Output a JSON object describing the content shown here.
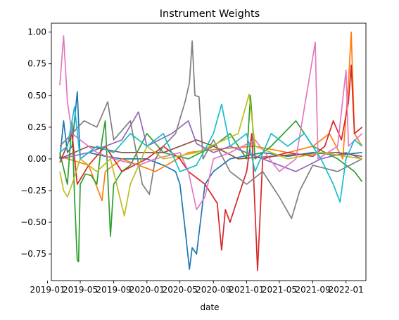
{
  "chart_data": {
    "type": "line",
    "title": "Instrument Weights",
    "xlabel": "date",
    "ylabel": "",
    "x_range": [
      "2019-01-15",
      "2022-03-15"
    ],
    "ylim": [
      -0.96,
      1.07
    ],
    "grid": false,
    "legend": "none",
    "x_ticks": [
      {
        "date": "2019-01-01",
        "label": "2019-01"
      },
      {
        "date": "2019-05-01",
        "label": "2019-05"
      },
      {
        "date": "2019-09-01",
        "label": "2019-09"
      },
      {
        "date": "2020-01-01",
        "label": "2020-01"
      },
      {
        "date": "2020-05-01",
        "label": "2020-05"
      },
      {
        "date": "2020-09-01",
        "label": "2020-09"
      },
      {
        "date": "2021-01-01",
        "label": "2021-01"
      },
      {
        "date": "2021-05-01",
        "label": "2021-05"
      },
      {
        "date": "2021-09-01",
        "label": "2021-09"
      },
      {
        "date": "2022-01-01",
        "label": "2022-01"
      }
    ],
    "y_ticks": [
      {
        "value": 1.0,
        "label": "1.00"
      },
      {
        "value": 0.75,
        "label": "0.75"
      },
      {
        "value": 0.5,
        "label": "0.50"
      },
      {
        "value": 0.25,
        "label": "0.25"
      },
      {
        "value": 0.0,
        "label": "0.00"
      },
      {
        "value": -0.25,
        "label": "−0.25"
      },
      {
        "value": -0.5,
        "label": "−0.50"
      },
      {
        "value": -0.75,
        "label": "−0.75"
      }
    ],
    "series": [
      {
        "color": "#1f77b4",
        "points": [
          [
            "2019-02-15",
            0.0
          ],
          [
            "2019-03-01",
            0.3
          ],
          [
            "2019-03-15",
            0.05
          ],
          [
            "2019-04-01",
            0.1
          ],
          [
            "2019-04-20",
            0.53
          ],
          [
            "2019-05-01",
            0.0
          ],
          [
            "2019-06-01",
            0.05
          ],
          [
            "2019-08-01",
            0.02
          ],
          [
            "2019-10-01",
            0.0
          ],
          [
            "2020-01-01",
            0.0
          ],
          [
            "2020-03-01",
            -0.05
          ],
          [
            "2020-04-15",
            -0.1
          ],
          [
            "2020-05-01",
            -0.2
          ],
          [
            "2020-05-20",
            -0.55
          ],
          [
            "2020-06-05",
            -0.87
          ],
          [
            "2020-06-15",
            -0.7
          ],
          [
            "2020-07-01",
            -0.75
          ],
          [
            "2020-07-15",
            -0.5
          ],
          [
            "2020-08-01",
            -0.2
          ],
          [
            "2020-09-01",
            -0.1
          ],
          [
            "2020-11-01",
            0.0
          ],
          [
            "2021-03-01",
            0.05
          ],
          [
            "2021-06-01",
            0.02
          ],
          [
            "2021-09-01",
            0.05
          ],
          [
            "2021-12-01",
            0.03
          ],
          [
            "2022-03-01",
            0.05
          ]
        ]
      },
      {
        "color": "#ff7f0e",
        "points": [
          [
            "2019-02-15",
            0.02
          ],
          [
            "2019-06-01",
            -0.05
          ],
          [
            "2019-07-20",
            -0.33
          ],
          [
            "2019-08-01",
            -0.1
          ],
          [
            "2019-10-01",
            0.0
          ],
          [
            "2020-02-01",
            -0.1
          ],
          [
            "2020-06-01",
            0.05
          ],
          [
            "2020-10-01",
            0.08
          ],
          [
            "2021-02-01",
            0.1
          ],
          [
            "2021-06-01",
            0.05
          ],
          [
            "2021-09-01",
            0.1
          ],
          [
            "2021-11-01",
            0.2
          ],
          [
            "2021-12-20",
            0.0
          ],
          [
            "2022-01-10",
            0.6
          ],
          [
            "2022-01-20",
            1.0
          ],
          [
            "2022-02-01",
            0.2
          ],
          [
            "2022-03-01",
            0.1
          ]
        ]
      },
      {
        "color": "#2ca02c",
        "points": [
          [
            "2019-02-15",
            0.05
          ],
          [
            "2019-03-15",
            -0.2
          ],
          [
            "2019-04-01",
            0.3
          ],
          [
            "2019-04-10",
            -0.3
          ],
          [
            "2019-04-20",
            -0.8
          ],
          [
            "2019-04-25",
            -0.81
          ],
          [
            "2019-05-01",
            -0.2
          ],
          [
            "2019-05-20",
            -0.12
          ],
          [
            "2019-06-10",
            -0.13
          ],
          [
            "2019-07-01",
            -0.2
          ],
          [
            "2019-07-20",
            0.15
          ],
          [
            "2019-08-01",
            0.3
          ],
          [
            "2019-08-20",
            -0.61
          ],
          [
            "2019-09-01",
            -0.2
          ],
          [
            "2019-10-01",
            -0.1
          ],
          [
            "2019-11-01",
            -0.05
          ],
          [
            "2020-01-01",
            0.2
          ],
          [
            "2020-03-01",
            0.05
          ],
          [
            "2020-06-01",
            0.0
          ],
          [
            "2020-09-01",
            0.1
          ],
          [
            "2020-11-01",
            0.2
          ],
          [
            "2021-01-01",
            0.0
          ],
          [
            "2021-01-15",
            0.5
          ],
          [
            "2021-02-01",
            0.0
          ],
          [
            "2021-04-01",
            0.1
          ],
          [
            "2021-07-01",
            0.3
          ],
          [
            "2021-09-01",
            0.1
          ],
          [
            "2021-12-01",
            0.0
          ],
          [
            "2022-02-01",
            -0.1
          ],
          [
            "2022-03-01",
            -0.18
          ]
        ]
      },
      {
        "color": "#d62728",
        "points": [
          [
            "2019-02-15",
            -0.03
          ],
          [
            "2019-04-01",
            0.2
          ],
          [
            "2019-04-20",
            -0.2
          ],
          [
            "2019-06-01",
            -0.05
          ],
          [
            "2019-08-01",
            0.1
          ],
          [
            "2019-10-01",
            -0.1
          ],
          [
            "2020-01-01",
            0.0
          ],
          [
            "2020-03-01",
            0.1
          ],
          [
            "2020-05-01",
            0.0
          ],
          [
            "2020-06-01",
            -0.1
          ],
          [
            "2020-08-01",
            -0.2
          ],
          [
            "2020-09-15",
            -0.35
          ],
          [
            "2020-10-01",
            -0.72
          ],
          [
            "2020-10-15",
            -0.4
          ],
          [
            "2020-11-01",
            -0.5
          ],
          [
            "2020-12-01",
            -0.3
          ],
          [
            "2021-01-01",
            -0.1
          ],
          [
            "2021-01-20",
            0.2
          ],
          [
            "2021-02-10",
            -0.88
          ],
          [
            "2021-03-01",
            0.0
          ],
          [
            "2021-06-01",
            0.05
          ],
          [
            "2021-09-01",
            0.02
          ],
          [
            "2021-10-15",
            0.1
          ],
          [
            "2021-11-15",
            0.3
          ],
          [
            "2021-12-15",
            0.15
          ],
          [
            "2022-01-10",
            0.45
          ],
          [
            "2022-01-20",
            0.74
          ],
          [
            "2022-02-01",
            0.2
          ],
          [
            "2022-03-01",
            0.25
          ]
        ]
      },
      {
        "color": "#9467bd",
        "points": [
          [
            "2019-02-15",
            0.0
          ],
          [
            "2019-06-01",
            0.05
          ],
          [
            "2019-10-01",
            0.15
          ],
          [
            "2019-12-01",
            0.37
          ],
          [
            "2020-01-01",
            0.1
          ],
          [
            "2020-04-01",
            0.2
          ],
          [
            "2020-06-01",
            0.3
          ],
          [
            "2020-07-01",
            0.12
          ],
          [
            "2020-09-01",
            0.05
          ],
          [
            "2020-11-01",
            0.1
          ],
          [
            "2021-03-01",
            0.0
          ],
          [
            "2021-07-01",
            -0.1
          ],
          [
            "2021-10-01",
            0.0
          ],
          [
            "2022-01-01",
            0.05
          ],
          [
            "2022-03-01",
            0.0
          ]
        ]
      },
      {
        "color": "#8c564b",
        "points": [
          [
            "2019-02-15",
            0.0
          ],
          [
            "2019-06-01",
            0.1
          ],
          [
            "2019-10-01",
            0.05
          ],
          [
            "2020-03-01",
            0.05
          ],
          [
            "2020-07-01",
            0.15
          ],
          [
            "2020-09-01",
            0.1
          ],
          [
            "2020-12-01",
            0.0
          ],
          [
            "2021-06-01",
            0.03
          ],
          [
            "2021-12-01",
            0.05
          ],
          [
            "2022-03-01",
            0.02
          ]
        ]
      },
      {
        "color": "#e377c2",
        "points": [
          [
            "2019-02-15",
            0.58
          ],
          [
            "2019-03-01",
            0.97
          ],
          [
            "2019-03-15",
            0.45
          ],
          [
            "2019-04-01",
            0.2
          ],
          [
            "2019-05-01",
            0.15
          ],
          [
            "2019-07-01",
            0.05
          ],
          [
            "2019-09-01",
            0.0
          ],
          [
            "2019-12-01",
            -0.05
          ],
          [
            "2020-02-01",
            0.0
          ],
          [
            "2020-05-01",
            0.05
          ],
          [
            "2020-06-01",
            -0.1
          ],
          [
            "2020-07-01",
            -0.4
          ],
          [
            "2020-08-01",
            -0.3
          ],
          [
            "2020-09-01",
            0.0
          ],
          [
            "2020-11-01",
            0.05
          ],
          [
            "2021-02-01",
            0.15
          ],
          [
            "2021-05-01",
            -0.1
          ],
          [
            "2021-07-01",
            0.0
          ],
          [
            "2021-09-10",
            0.92
          ],
          [
            "2021-09-20",
            0.0
          ],
          [
            "2021-12-01",
            0.1
          ],
          [
            "2022-01-01",
            0.7
          ],
          [
            "2022-01-10",
            0.1
          ],
          [
            "2022-03-01",
            0.2
          ]
        ]
      },
      {
        "color": "#7f7f7f",
        "points": [
          [
            "2019-02-15",
            0.1
          ],
          [
            "2019-04-01",
            0.2
          ],
          [
            "2019-05-15",
            0.3
          ],
          [
            "2019-07-01",
            0.25
          ],
          [
            "2019-08-10",
            0.45
          ],
          [
            "2019-09-01",
            0.15
          ],
          [
            "2019-11-01",
            0.3
          ],
          [
            "2019-12-15",
            -0.2
          ],
          [
            "2020-01-10",
            -0.28
          ],
          [
            "2020-02-01",
            0.0
          ],
          [
            "2020-03-01",
            0.1
          ],
          [
            "2020-04-15",
            0.2
          ],
          [
            "2020-05-20",
            0.45
          ],
          [
            "2020-06-05",
            0.6
          ],
          [
            "2020-06-15",
            0.93
          ],
          [
            "2020-06-25",
            0.5
          ],
          [
            "2020-07-10",
            0.49
          ],
          [
            "2020-07-25",
            0.0
          ],
          [
            "2020-09-01",
            0.15
          ],
          [
            "2020-11-01",
            -0.1
          ],
          [
            "2021-01-01",
            -0.2
          ],
          [
            "2021-03-01",
            -0.1
          ],
          [
            "2021-05-01",
            -0.3
          ],
          [
            "2021-06-15",
            -0.47
          ],
          [
            "2021-07-15",
            -0.25
          ],
          [
            "2021-09-01",
            -0.05
          ],
          [
            "2021-12-01",
            -0.1
          ],
          [
            "2022-03-01",
            0.0
          ]
        ]
      },
      {
        "color": "#bcbd22",
        "points": [
          [
            "2019-02-15",
            -0.1
          ],
          [
            "2019-03-01",
            -0.25
          ],
          [
            "2019-03-15",
            -0.3
          ],
          [
            "2019-04-01",
            -0.2
          ],
          [
            "2019-05-01",
            0.0
          ],
          [
            "2019-07-01",
            -0.1
          ],
          [
            "2019-08-20",
            0.0
          ],
          [
            "2019-10-10",
            -0.45
          ],
          [
            "2019-11-01",
            -0.2
          ],
          [
            "2020-01-01",
            0.1
          ],
          [
            "2020-03-01",
            0.0
          ],
          [
            "2020-07-01",
            0.05
          ],
          [
            "2020-12-01",
            0.2
          ],
          [
            "2021-01-10",
            0.51
          ],
          [
            "2021-02-01",
            0.1
          ],
          [
            "2021-06-01",
            0.0
          ],
          [
            "2021-10-01",
            0.05
          ],
          [
            "2022-03-01",
            0.0
          ]
        ]
      },
      {
        "color": "#17becf",
        "points": [
          [
            "2019-02-15",
            0.05
          ],
          [
            "2019-03-15",
            0.1
          ],
          [
            "2019-04-10",
            0.41
          ],
          [
            "2019-05-01",
            0.0
          ],
          [
            "2019-07-01",
            0.1
          ],
          [
            "2019-09-01",
            0.05
          ],
          [
            "2019-11-01",
            0.2
          ],
          [
            "2020-01-01",
            0.1
          ],
          [
            "2020-03-01",
            0.2
          ],
          [
            "2020-05-01",
            -0.1
          ],
          [
            "2020-07-01",
            -0.05
          ],
          [
            "2020-09-01",
            0.2
          ],
          [
            "2020-10-01",
            0.43
          ],
          [
            "2020-11-01",
            0.1
          ],
          [
            "2021-01-01",
            0.2
          ],
          [
            "2021-02-01",
            -0.1
          ],
          [
            "2021-04-01",
            0.2
          ],
          [
            "2021-06-01",
            0.1
          ],
          [
            "2021-08-01",
            0.2
          ],
          [
            "2021-10-01",
            0.0
          ],
          [
            "2021-11-15",
            -0.2
          ],
          [
            "2021-12-10",
            -0.34
          ],
          [
            "2022-01-01",
            0.0
          ],
          [
            "2022-02-01",
            0.15
          ],
          [
            "2022-03-01",
            0.1
          ]
        ]
      }
    ]
  }
}
